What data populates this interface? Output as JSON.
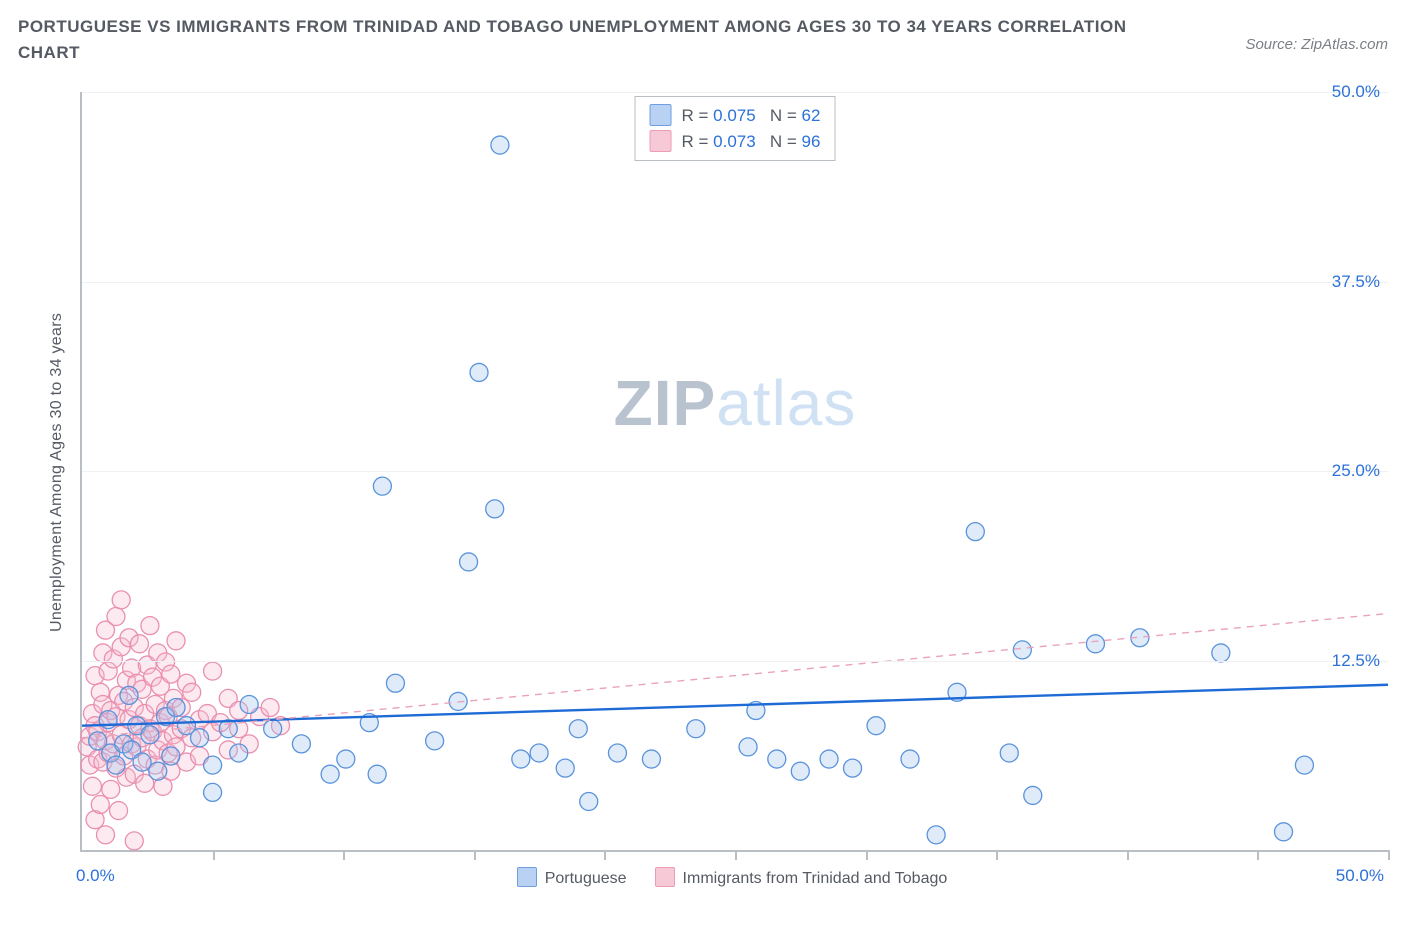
{
  "title": "PORTUGUESE VS IMMIGRANTS FROM TRINIDAD AND TOBAGO UNEMPLOYMENT AMONG AGES 30 TO 34 YEARS CORRELATION CHART",
  "source_label": "Source: ZipAtlas.com",
  "y_axis_label": "Unemployment Among Ages 30 to 34 years",
  "xlim": [
    0,
    50
  ],
  "ylim": [
    0,
    50
  ],
  "x_origin_tick": "0.0%",
  "x_max_tick": "50.0%",
  "x_minor_ticks": [
    5,
    10,
    15,
    20,
    25,
    30,
    35,
    40,
    45,
    50
  ],
  "y_ticks": [
    {
      "v": 12.5,
      "label": "12.5%"
    },
    {
      "v": 25.0,
      "label": "25.0%"
    },
    {
      "v": 37.5,
      "label": "37.5%"
    },
    {
      "v": 50.0,
      "label": "50.0%"
    }
  ],
  "grid_color": "#eef0f3",
  "axis_color": "#b9bdc4",
  "text_color": "#555a63",
  "tick_label_color": "#2b71d9",
  "marker_radius": 9,
  "marker_stroke_width": 1.3,
  "marker_fill_opacity": 0.32,
  "watermark": {
    "text_strong": "ZIP",
    "text_rest": "atlas",
    "color_strong": "#b8c3cf",
    "color_rest": "#cfe1f3"
  },
  "series": [
    {
      "id": "portuguese",
      "label": "Portuguese",
      "color_fill": "#9fc1ef",
      "color_stroke": "#5a93db",
      "swatch_fill": "#b9d1f2",
      "swatch_border": "#6e9fe0",
      "R": "0.075",
      "N": "62",
      "trend": {
        "y_at_x0": 8.2,
        "y_at_x50": 10.9,
        "stroke": "#1e6bd6",
        "width": 2.4,
        "dash": ""
      },
      "points": [
        [
          0.6,
          7.2
        ],
        [
          1.0,
          8.6
        ],
        [
          1.1,
          6.4
        ],
        [
          1.3,
          5.6
        ],
        [
          1.6,
          7.0
        ],
        [
          1.8,
          10.2
        ],
        [
          1.9,
          6.6
        ],
        [
          2.1,
          8.2
        ],
        [
          2.3,
          5.8
        ],
        [
          2.6,
          7.6
        ],
        [
          2.9,
          5.2
        ],
        [
          3.2,
          8.8
        ],
        [
          3.4,
          6.2
        ],
        [
          3.6,
          9.4
        ],
        [
          4.0,
          8.2
        ],
        [
          4.5,
          7.4
        ],
        [
          5.0,
          5.6
        ],
        [
          5.0,
          3.8
        ],
        [
          5.6,
          8.0
        ],
        [
          6.0,
          6.4
        ],
        [
          6.4,
          9.6
        ],
        [
          7.3,
          8.0
        ],
        [
          8.4,
          7.0
        ],
        [
          9.5,
          5.0
        ],
        [
          10.1,
          6.0
        ],
        [
          11.0,
          8.4
        ],
        [
          11.3,
          5.0
        ],
        [
          11.5,
          24.0
        ],
        [
          12.0,
          11.0
        ],
        [
          13.5,
          7.2
        ],
        [
          14.4,
          9.8
        ],
        [
          14.8,
          19.0
        ],
        [
          15.8,
          22.5
        ],
        [
          15.2,
          31.5
        ],
        [
          16.0,
          46.5
        ],
        [
          16.8,
          6.0
        ],
        [
          17.5,
          6.4
        ],
        [
          18.5,
          5.4
        ],
        [
          19.0,
          8.0
        ],
        [
          19.4,
          3.2
        ],
        [
          20.5,
          6.4
        ],
        [
          21.8,
          6.0
        ],
        [
          23.5,
          8.0
        ],
        [
          25.5,
          6.8
        ],
        [
          25.8,
          9.2
        ],
        [
          26.6,
          6.0
        ],
        [
          27.5,
          5.2
        ],
        [
          28.6,
          6.0
        ],
        [
          29.5,
          5.4
        ],
        [
          30.4,
          8.2
        ],
        [
          31.7,
          6.0
        ],
        [
          32.7,
          1.0
        ],
        [
          33.5,
          10.4
        ],
        [
          34.2,
          21.0
        ],
        [
          35.5,
          6.4
        ],
        [
          36.0,
          13.2
        ],
        [
          36.4,
          3.6
        ],
        [
          38.8,
          13.6
        ],
        [
          40.5,
          14.0
        ],
        [
          43.6,
          13.0
        ],
        [
          46.0,
          1.2
        ],
        [
          46.8,
          5.6
        ]
      ]
    },
    {
      "id": "trinidad",
      "label": "Immigrants from Trinidad and Tobago",
      "color_fill": "#f6bfd0",
      "color_stroke": "#ea8fb0",
      "swatch_fill": "#f7c9d7",
      "swatch_border": "#ec9cb7",
      "R": "0.073",
      "N": "96",
      "trend": {
        "y_at_x0": 7.4,
        "y_at_x50": 15.6,
        "stroke": "#e9a3bb",
        "width": 1.4,
        "dash": "7 6"
      },
      "points": [
        [
          0.2,
          6.8
        ],
        [
          0.3,
          7.5
        ],
        [
          0.3,
          5.6
        ],
        [
          0.4,
          9.0
        ],
        [
          0.4,
          4.2
        ],
        [
          0.5,
          8.2
        ],
        [
          0.5,
          11.5
        ],
        [
          0.5,
          2.0
        ],
        [
          0.6,
          6.0
        ],
        [
          0.6,
          7.8
        ],
        [
          0.7,
          10.4
        ],
        [
          0.7,
          3.0
        ],
        [
          0.8,
          9.6
        ],
        [
          0.8,
          13.0
        ],
        [
          0.8,
          5.8
        ],
        [
          0.9,
          7.2
        ],
        [
          0.9,
          14.5
        ],
        [
          0.9,
          1.0
        ],
        [
          1.0,
          8.4
        ],
        [
          1.0,
          11.8
        ],
        [
          1.0,
          6.4
        ],
        [
          1.1,
          4.0
        ],
        [
          1.1,
          9.2
        ],
        [
          1.2,
          7.0
        ],
        [
          1.2,
          12.6
        ],
        [
          1.3,
          5.4
        ],
        [
          1.3,
          15.4
        ],
        [
          1.3,
          8.8
        ],
        [
          1.4,
          10.2
        ],
        [
          1.4,
          2.6
        ],
        [
          1.5,
          7.6
        ],
        [
          1.5,
          13.4
        ],
        [
          1.5,
          16.5
        ],
        [
          1.6,
          6.2
        ],
        [
          1.6,
          9.8
        ],
        [
          1.7,
          11.2
        ],
        [
          1.7,
          4.8
        ],
        [
          1.8,
          8.6
        ],
        [
          1.8,
          14.0
        ],
        [
          1.9,
          7.0
        ],
        [
          1.9,
          12.0
        ],
        [
          2.0,
          5.0
        ],
        [
          2.0,
          9.4
        ],
        [
          2.0,
          0.6
        ],
        [
          2.1,
          11.0
        ],
        [
          2.1,
          6.8
        ],
        [
          2.2,
          8.2
        ],
        [
          2.2,
          13.6
        ],
        [
          2.3,
          7.4
        ],
        [
          2.3,
          10.6
        ],
        [
          2.4,
          4.4
        ],
        [
          2.4,
          9.0
        ],
        [
          2.5,
          12.2
        ],
        [
          2.5,
          6.0
        ],
        [
          2.6,
          8.0
        ],
        [
          2.6,
          14.8
        ],
        [
          2.7,
          7.8
        ],
        [
          2.7,
          11.4
        ],
        [
          2.8,
          5.6
        ],
        [
          2.8,
          9.6
        ],
        [
          2.9,
          13.0
        ],
        [
          2.9,
          6.6
        ],
        [
          3.0,
          8.4
        ],
        [
          3.0,
          10.8
        ],
        [
          3.1,
          7.2
        ],
        [
          3.1,
          4.2
        ],
        [
          3.2,
          9.2
        ],
        [
          3.2,
          12.4
        ],
        [
          3.3,
          6.4
        ],
        [
          3.3,
          8.8
        ],
        [
          3.4,
          11.6
        ],
        [
          3.4,
          5.2
        ],
        [
          3.5,
          7.6
        ],
        [
          3.5,
          10.0
        ],
        [
          3.6,
          13.8
        ],
        [
          3.6,
          6.8
        ],
        [
          3.8,
          9.4
        ],
        [
          3.8,
          8.0
        ],
        [
          4.0,
          11.0
        ],
        [
          4.0,
          5.8
        ],
        [
          4.2,
          7.4
        ],
        [
          4.2,
          10.4
        ],
        [
          4.5,
          8.6
        ],
        [
          4.5,
          6.2
        ],
        [
          4.8,
          9.0
        ],
        [
          5.0,
          7.8
        ],
        [
          5.0,
          11.8
        ],
        [
          5.3,
          8.4
        ],
        [
          5.6,
          6.6
        ],
        [
          5.6,
          10.0
        ],
        [
          6.0,
          8.0
        ],
        [
          6.0,
          9.2
        ],
        [
          6.4,
          7.0
        ],
        [
          6.8,
          8.8
        ],
        [
          7.2,
          9.4
        ],
        [
          7.6,
          8.2
        ]
      ]
    }
  ]
}
